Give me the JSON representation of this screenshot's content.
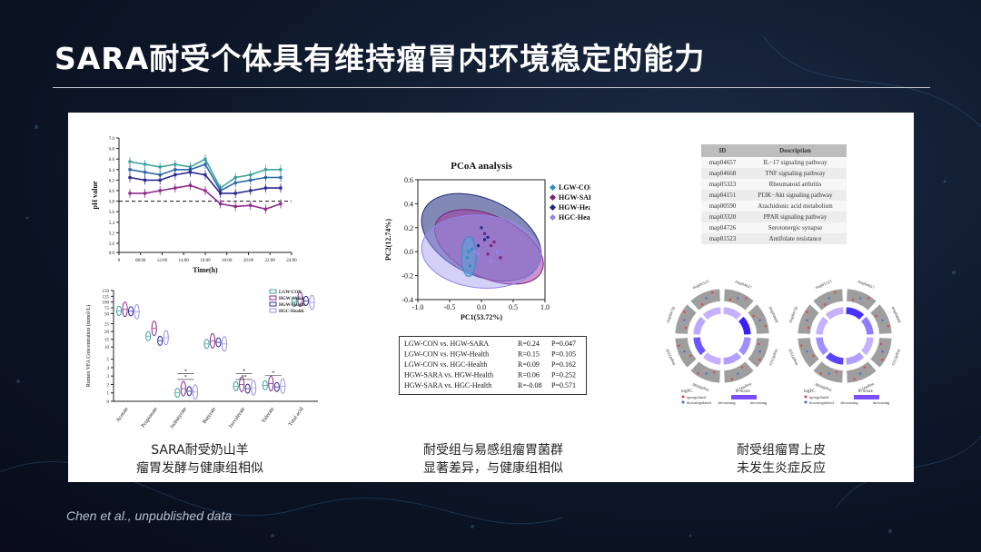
{
  "slide": {
    "title": "SARA耐受个体具有维持瘤胃内环境稳定的能力",
    "citation": "Chen et al., unpublished data",
    "captions": [
      [
        "SARA耐受奶山羊",
        "瘤胃发酵与健康组相似"
      ],
      [
        "耐受组与易感组瘤胃菌群",
        "显著差异，与健康组相似"
      ],
      [
        "耐受组瘤胃上皮",
        "未发生炎症反应"
      ]
    ]
  },
  "chart_data": [
    {
      "type": "line",
      "xlabel": "Time(h)",
      "ylabel": "pH value",
      "xticks": [
        "0",
        "08:00",
        "12:00",
        "14:00",
        "16:00",
        "18:00",
        "20:00",
        "22:00",
        "24:00"
      ],
      "yticks": [
        "0.0",
        "5.0",
        "5.2",
        "5.4",
        "5.6",
        "5.8",
        "6.0",
        "6.2",
        "6.4",
        "6.6",
        "6.8",
        "7.0"
      ],
      "threshold_line": 5.8,
      "series": [
        {
          "color": "#3aa39a",
          "values": [
            6.55,
            6.5,
            6.45,
            6.5,
            6.45,
            6.6,
            6.05,
            6.25,
            6.3,
            6.4,
            6.4
          ]
        },
        {
          "color": "#2d6aa8",
          "values": [
            6.4,
            6.35,
            6.3,
            6.4,
            6.4,
            6.5,
            6.0,
            6.15,
            6.2,
            6.25,
            6.25
          ]
        },
        {
          "color": "#2b2b8f",
          "values": [
            6.25,
            6.2,
            6.2,
            6.3,
            6.35,
            6.3,
            5.95,
            5.95,
            6.0,
            6.05,
            6.05
          ]
        },
        {
          "color": "#8e2a8e",
          "values": [
            5.95,
            5.95,
            6.0,
            6.05,
            6.1,
            6.0,
            5.75,
            5.7,
            5.72,
            5.65,
            5.75
          ]
        }
      ]
    },
    {
      "type": "violin",
      "ylabel": "Rumen VFA Concentration (mmol/L)",
      "categories": [
        "Acetate",
        "Propionate",
        "Isobutyrate",
        "Butyrate",
        "Isovalerate",
        "Valerate",
        "Total acid"
      ],
      "yticks": [
        "0",
        "1",
        "2",
        "3",
        "4",
        "5",
        "10",
        "15",
        "20",
        "25",
        "50",
        "75",
        "100",
        "125",
        "150"
      ],
      "legend": [
        {
          "name": "LGW-CON",
          "color": "#3aa39a"
        },
        {
          "name": "HGW-SARA",
          "color": "#8e2a8e"
        },
        {
          "name": "HGW-Health",
          "color": "#2b2b8f"
        },
        {
          "name": "HGC-Health",
          "color": "#9b8fe8"
        }
      ],
      "groups": [
        {
          "category": "Acetate",
          "values": [
            62,
            68,
            60,
            58
          ]
        },
        {
          "category": "Propionate",
          "values": [
            17,
            22,
            14,
            16
          ]
        },
        {
          "category": "Isobutyrate",
          "values": [
            1.0,
            1.5,
            1.2,
            1.1
          ]
        },
        {
          "category": "Butyrate",
          "values": [
            12,
            14,
            13,
            12
          ]
        },
        {
          "category": "Isovalerate",
          "values": [
            1.8,
            2.0,
            1.5,
            1.6
          ]
        },
        {
          "category": "Valerate",
          "values": [
            1.9,
            2.1,
            1.7,
            1.8
          ]
        },
        {
          "category": "Total acid",
          "values": [
            100,
            112,
            105,
            98
          ]
        }
      ],
      "annotations": [
        "*",
        "*",
        "**",
        "*",
        "*"
      ]
    },
    {
      "type": "scatter",
      "title": "PCoA analysis",
      "xlabel": "PC1(53.72%)",
      "ylabel": "PC2(12.74%)",
      "xlim": [
        -1.0,
        1.0
      ],
      "ylim": [
        -0.4,
        0.6
      ],
      "xticks": [
        "-1.0",
        "-0.5",
        "0.0",
        "0.5",
        "1.0"
      ],
      "yticks": [
        "-0.4",
        "-0.2",
        "0.0",
        "0.2",
        "0.4",
        "0.6"
      ],
      "legend": [
        {
          "name": "LGW-CON",
          "color": "#2e8fbf",
          "marker": "triangle"
        },
        {
          "name": "HGW-SARA",
          "color": "#7a1f7a",
          "marker": "diamond"
        },
        {
          "name": "HGW-Health",
          "color": "#1f2a80",
          "marker": "square"
        },
        {
          "name": "HGC-Health",
          "color": "#8f86e8",
          "marker": "triangle-down"
        }
      ],
      "points": [
        {
          "group": 0,
          "x": -0.2,
          "y": 0.0
        },
        {
          "group": 0,
          "x": -0.22,
          "y": -0.05
        },
        {
          "group": 0,
          "x": -0.18,
          "y": -0.12
        },
        {
          "group": 0,
          "x": -0.15,
          "y": 0.02
        },
        {
          "group": 1,
          "x": 0.05,
          "y": 0.15
        },
        {
          "group": 1,
          "x": 0.15,
          "y": 0.05
        },
        {
          "group": 1,
          "x": 0.3,
          "y": -0.05
        },
        {
          "group": 1,
          "x": 0.1,
          "y": -0.02
        },
        {
          "group": 1,
          "x": 0.2,
          "y": 0.08
        },
        {
          "group": 2,
          "x": 0.0,
          "y": 0.2
        },
        {
          "group": 2,
          "x": 0.05,
          "y": 0.1
        },
        {
          "group": 2,
          "x": -0.05,
          "y": 0.05
        },
        {
          "group": 2,
          "x": 0.1,
          "y": 0.12
        },
        {
          "group": 3,
          "x": -0.1,
          "y": 0.0
        },
        {
          "group": 3,
          "x": 0.25,
          "y": 0.0
        },
        {
          "group": 3,
          "x": 0.15,
          "y": -0.08
        },
        {
          "group": 3,
          "x": -0.05,
          "y": -0.02
        }
      ],
      "stats_table": [
        {
          "comparison": "LGW-CON vs. HGW-SARA",
          "R": "R=0.24",
          "P": "P=0.047"
        },
        {
          "comparison": "LGW-CON vs. HGW-Health",
          "R": "R=0.15",
          "P": "P=0.105"
        },
        {
          "comparison": "LGW-CON vs. HGC-Health",
          "R": "R=0.09",
          "P": "P=0.162"
        },
        {
          "comparison": "HGW-SARA vs. HGW-Health",
          "R": "R=0.06",
          "P": "P=0.252"
        },
        {
          "comparison": "HGW-SARA vs. HGC-Health",
          "R": "R=-0.08",
          "P": "P=0.571"
        }
      ]
    },
    {
      "type": "table",
      "columns": [
        "ID",
        "Description"
      ],
      "rows": [
        [
          "map04657",
          "IL−17 signaling pathway"
        ],
        [
          "map04668",
          "TNF signaling pathway"
        ],
        [
          "map05323",
          "Rheumatoid arthritis"
        ],
        [
          "map04151",
          "PI3K−Akt signaling pathway"
        ],
        [
          "map00590",
          "Arachidonic acid metabolism"
        ],
        [
          "map03320",
          "PPAR signaling pathway"
        ],
        [
          "map04726",
          "Serotonergic synapse"
        ],
        [
          "map01523",
          "Antifolate resistance"
        ]
      ]
    },
    {
      "type": "circos",
      "sectors": [
        "map04657",
        "map04668",
        "map05323",
        "map04151",
        "map00590",
        "map03320",
        "map04726",
        "map01523"
      ],
      "legend": {
        "logfc": "logFC",
        "up": "upregulated",
        "down": "downregulated",
        "zscore": "z−score",
        "decreasing": "decreasing",
        "increasing": "increasing"
      },
      "charts": [
        {
          "inner": [
            0.1,
            0.9,
            0.3,
            0.2,
            0.1,
            0.6,
            0.15,
            0.1
          ]
        },
        {
          "inner": [
            0.8,
            0.4,
            0.1,
            0.2,
            0.7,
            0.3,
            0.1,
            0.1
          ]
        }
      ]
    }
  ]
}
